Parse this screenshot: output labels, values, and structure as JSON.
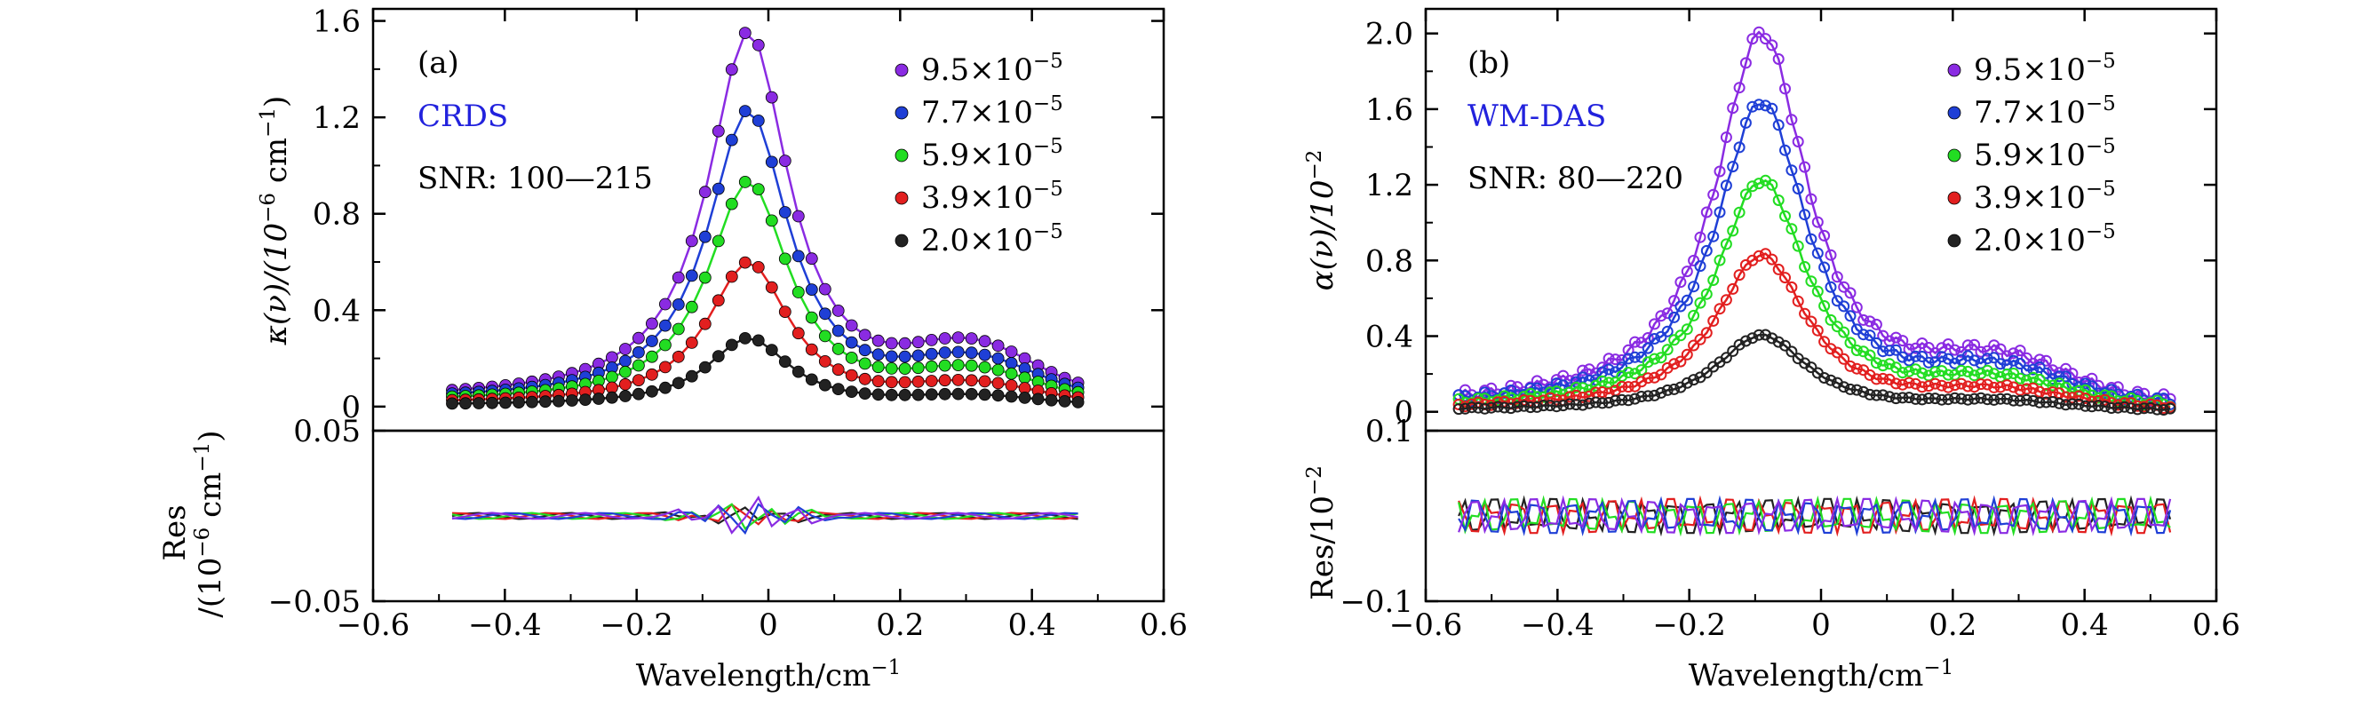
{
  "chart_data": [
    {
      "type": "line",
      "panel_label": "(a)",
      "method_label": "CRDS",
      "method_color": "#2222dd",
      "snr_label": "SNR: 100—215",
      "xlabel": "Wavelength/cm",
      "xlabel_exp": "−1",
      "ylabel": "κ(ν)/(10",
      "ylabel_exp1": "−6",
      "ylabel_mid": " cm",
      "ylabel_exp2": "−1",
      "ylabel_end": ")",
      "xlim": [
        -0.6,
        0.6
      ],
      "ylim": [
        -0.1,
        1.65
      ],
      "xticks": [
        "−0.6",
        "−0.4",
        "−0.2",
        "0",
        "0.2",
        "0.4",
        "0.6"
      ],
      "xtick_values": [
        -0.6,
        -0.4,
        -0.2,
        0,
        0.2,
        0.4,
        0.6
      ],
      "yticks": [
        "0",
        "0.4",
        "0.8",
        "1.2",
        "1.6"
      ],
      "ytick_values": [
        0,
        0.4,
        0.8,
        1.2,
        1.6
      ],
      "x_range": [
        -0.48,
        0.47
      ],
      "n_points": 48,
      "profile": {
        "center": -0.03,
        "width": 0.075,
        "bump_center": 0.31,
        "bump_width": 0.09,
        "bump_ratio": 0.12,
        "base_ratio": 0.06
      },
      "series": [
        {
          "name": "9.5×10",
          "exp": "−5",
          "color": "#8a2be2",
          "peak": 1.53
        },
        {
          "name": "7.7×10",
          "exp": "−5",
          "color": "#1f3fd6",
          "peak": 1.21
        },
        {
          "name": "5.9×10",
          "exp": "−5",
          "color": "#22dd22",
          "peak": 0.92
        },
        {
          "name": "3.9×10",
          "exp": "−5",
          "color": "#e21f1f",
          "peak": 0.59
        },
        {
          "name": "2.0×10",
          "exp": "−5",
          "color": "#222222",
          "peak": 0.28
        }
      ],
      "residual": {
        "ylabel_line1": "Res",
        "ylabel_line2": "/(10",
        "ylabel_exp1": "−6",
        "ylabel_mid": " cm",
        "ylabel_exp2": "−1",
        "ylabel_end": ")",
        "ylim": [
          -0.05,
          0.05
        ],
        "yticks": [
          "0.05",
          "−0.05"
        ],
        "ytick_values": [
          0.05,
          -0.05
        ],
        "n_points": 48,
        "amplitude": 0.003,
        "peak_amplitude": 0.011
      }
    },
    {
      "type": "line",
      "panel_label": "(b)",
      "method_label": "WM-DAS",
      "method_color": "#2222dd",
      "snr_label": "SNR: 80—220",
      "xlabel": "Wavelength/cm",
      "xlabel_exp": "−1",
      "ylabel": "α(ν)/10",
      "ylabel_exp1": "−2",
      "xlim": [
        -0.6,
        0.6
      ],
      "ylim": [
        -0.1,
        2.13
      ],
      "xticks": [
        "−0.6",
        "−0.4",
        "−0.2",
        "0",
        "0.2",
        "0.4",
        "0.6"
      ],
      "xtick_values": [
        -0.6,
        -0.4,
        -0.2,
        0,
        0.2,
        0.4,
        0.6
      ],
      "yticks": [
        "0",
        "0.4",
        "0.8",
        "1.2",
        "1.6",
        "2.0"
      ],
      "ytick_values": [
        0,
        0.4,
        0.8,
        1.2,
        1.6,
        2.0
      ],
      "x_range": [
        -0.55,
        0.53
      ],
      "n_points": 110,
      "profile": {
        "center": -0.09,
        "width": 0.085,
        "bump_center": 0.27,
        "bump_width": 0.1,
        "bump_ratio": 0.1,
        "base_ratio": 0.04
      },
      "series": [
        {
          "name": "9.5×10",
          "exp": "−5",
          "color": "#8a2be2",
          "peak": 1.98
        },
        {
          "name": "7.7×10",
          "exp": "−5",
          "color": "#1f3fd6",
          "peak": 1.62
        },
        {
          "name": "5.9×10",
          "exp": "−5",
          "color": "#22dd22",
          "peak": 1.21
        },
        {
          "name": "3.9×10",
          "exp": "−5",
          "color": "#e21f1f",
          "peak": 0.82
        },
        {
          "name": "2.0×10",
          "exp": "−5",
          "color": "#222222",
          "peak": 0.4
        }
      ],
      "residual": {
        "ylabel_line1": "Res/10",
        "ylabel_exp1": "−2",
        "ylim": [
          -0.1,
          0.1
        ],
        "yticks": [
          "0.1",
          "−0.1"
        ],
        "ytick_values": [
          0.1,
          -0.1
        ],
        "n_points": 110,
        "amplitude": 0.02,
        "peak_amplitude": 0.02
      }
    }
  ]
}
